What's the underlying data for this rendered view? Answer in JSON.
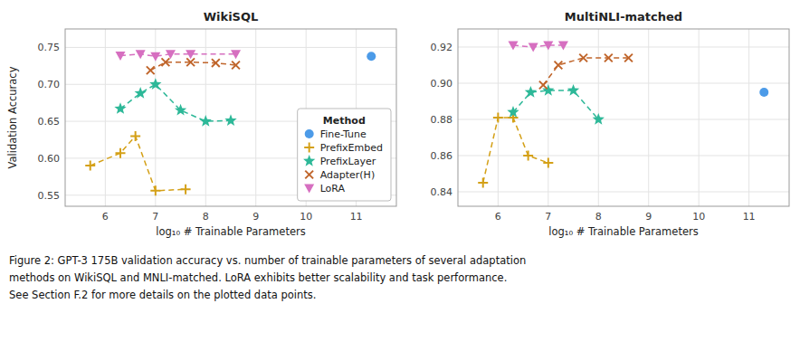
{
  "chart_data": [
    {
      "type": "line",
      "title": "WikiSQL",
      "x_label": "log₁₀ # Trainable Parameters",
      "y_label": "Validation Accuracy",
      "xlim": [
        5.2,
        11.8
      ],
      "xticks": [
        6,
        7,
        8,
        9,
        10,
        11
      ],
      "ylim": [
        0.535,
        0.775
      ],
      "yticks": [
        0.55,
        {
          "value": 0.6,
          "label": "0.60"
        },
        0.65,
        {
          "value": 0.7,
          "label": "0.70"
        },
        0.75
      ],
      "grid": true,
      "legend": "lower right",
      "legend_title": "Method",
      "series": [
        {
          "name": "Fine-Tune",
          "type": "scatter",
          "color": "#4c9be8",
          "marker": "circle",
          "x": [
            11.3
          ],
          "values": [
            0.738
          ]
        },
        {
          "name": "PrefixEmbed",
          "color": "#d4a017",
          "marker": "plus",
          "line_style": "dashed",
          "x": [
            5.7,
            6.3,
            6.6,
            7.0,
            7.6
          ],
          "values": [
            0.59,
            0.607,
            0.63,
            0.556,
            0.558
          ]
        },
        {
          "name": "PrefixLayer",
          "color": "#2db898",
          "marker": "star",
          "line_style": "dashed",
          "x": [
            6.3,
            6.7,
            7.0,
            7.5,
            8.0,
            8.5
          ],
          "values": [
            0.667,
            0.688,
            0.7,
            0.665,
            0.65,
            0.651
          ]
        },
        {
          "name": "Adapter(H)",
          "color": "#c0652b",
          "marker": "x",
          "line_style": "dashed",
          "x": [
            6.9,
            7.2,
            7.7,
            8.2,
            8.6
          ],
          "values": [
            0.719,
            0.73,
            0.73,
            0.729,
            0.726
          ]
        },
        {
          "name": "LoRA",
          "color": "#d66fc0",
          "marker": "triangle-down",
          "line_style": "dashed",
          "x": [
            6.3,
            6.7,
            7.0,
            7.3,
            7.7,
            8.6
          ],
          "values": [
            0.739,
            0.741,
            0.738,
            0.741,
            0.741,
            0.741
          ]
        }
      ],
      "annotations": [
        "Figure 2: GPT-3 175B validation accuracy vs. number of trainable parameters of several adaptation",
        "methods on WikiSQL and MNLI-matched. LoRA exhibits better scalability and task performance.",
        "See Section F.2 for more details on the plotted data points."
      ]
    },
    {
      "type": "line",
      "title": "MultiNLI-matched",
      "x_label": "log₁₀ # Trainable Parameters",
      "xlim": [
        5.2,
        11.8
      ],
      "xticks": [
        6,
        7,
        8,
        9,
        10,
        11
      ],
      "ylim": [
        0.832,
        0.93
      ],
      "yticks": [
        0.84,
        0.86,
        0.88,
        {
          "value": 0.9,
          "label": "0.90"
        },
        0.92
      ],
      "grid": true,
      "series": [
        {
          "name": "Fine-Tune",
          "type": "scatter",
          "color": "#4c9be8",
          "marker": "circle",
          "x": [
            11.3
          ],
          "values": [
            0.895
          ]
        },
        {
          "name": "PrefixEmbed",
          "color": "#d4a017",
          "marker": "plus",
          "line_style": "dashed",
          "x": [
            5.7,
            6.0,
            6.3,
            6.6,
            7.0
          ],
          "values": [
            0.845,
            0.881,
            0.881,
            0.86,
            0.856
          ]
        },
        {
          "name": "PrefixLayer",
          "color": "#2db898",
          "marker": "star",
          "line_style": "dashed",
          "x": [
            6.3,
            6.65,
            7.0,
            7.5,
            8.0
          ],
          "values": [
            0.884,
            0.895,
            0.896,
            0.896,
            0.88
          ]
        },
        {
          "name": "Adapter(H)",
          "color": "#c0652b",
          "marker": "x",
          "line_style": "dashed",
          "x": [
            6.9,
            7.2,
            7.7,
            8.2,
            8.6
          ],
          "values": [
            0.899,
            0.91,
            0.914,
            0.914,
            0.914
          ]
        },
        {
          "name": "LoRA",
          "color": "#d66fc0",
          "marker": "triangle-down",
          "line_style": "dashed",
          "x": [
            6.3,
            6.7,
            7.0,
            7.3
          ],
          "values": [
            0.921,
            0.92,
            0.921,
            0.921
          ]
        }
      ]
    }
  ]
}
